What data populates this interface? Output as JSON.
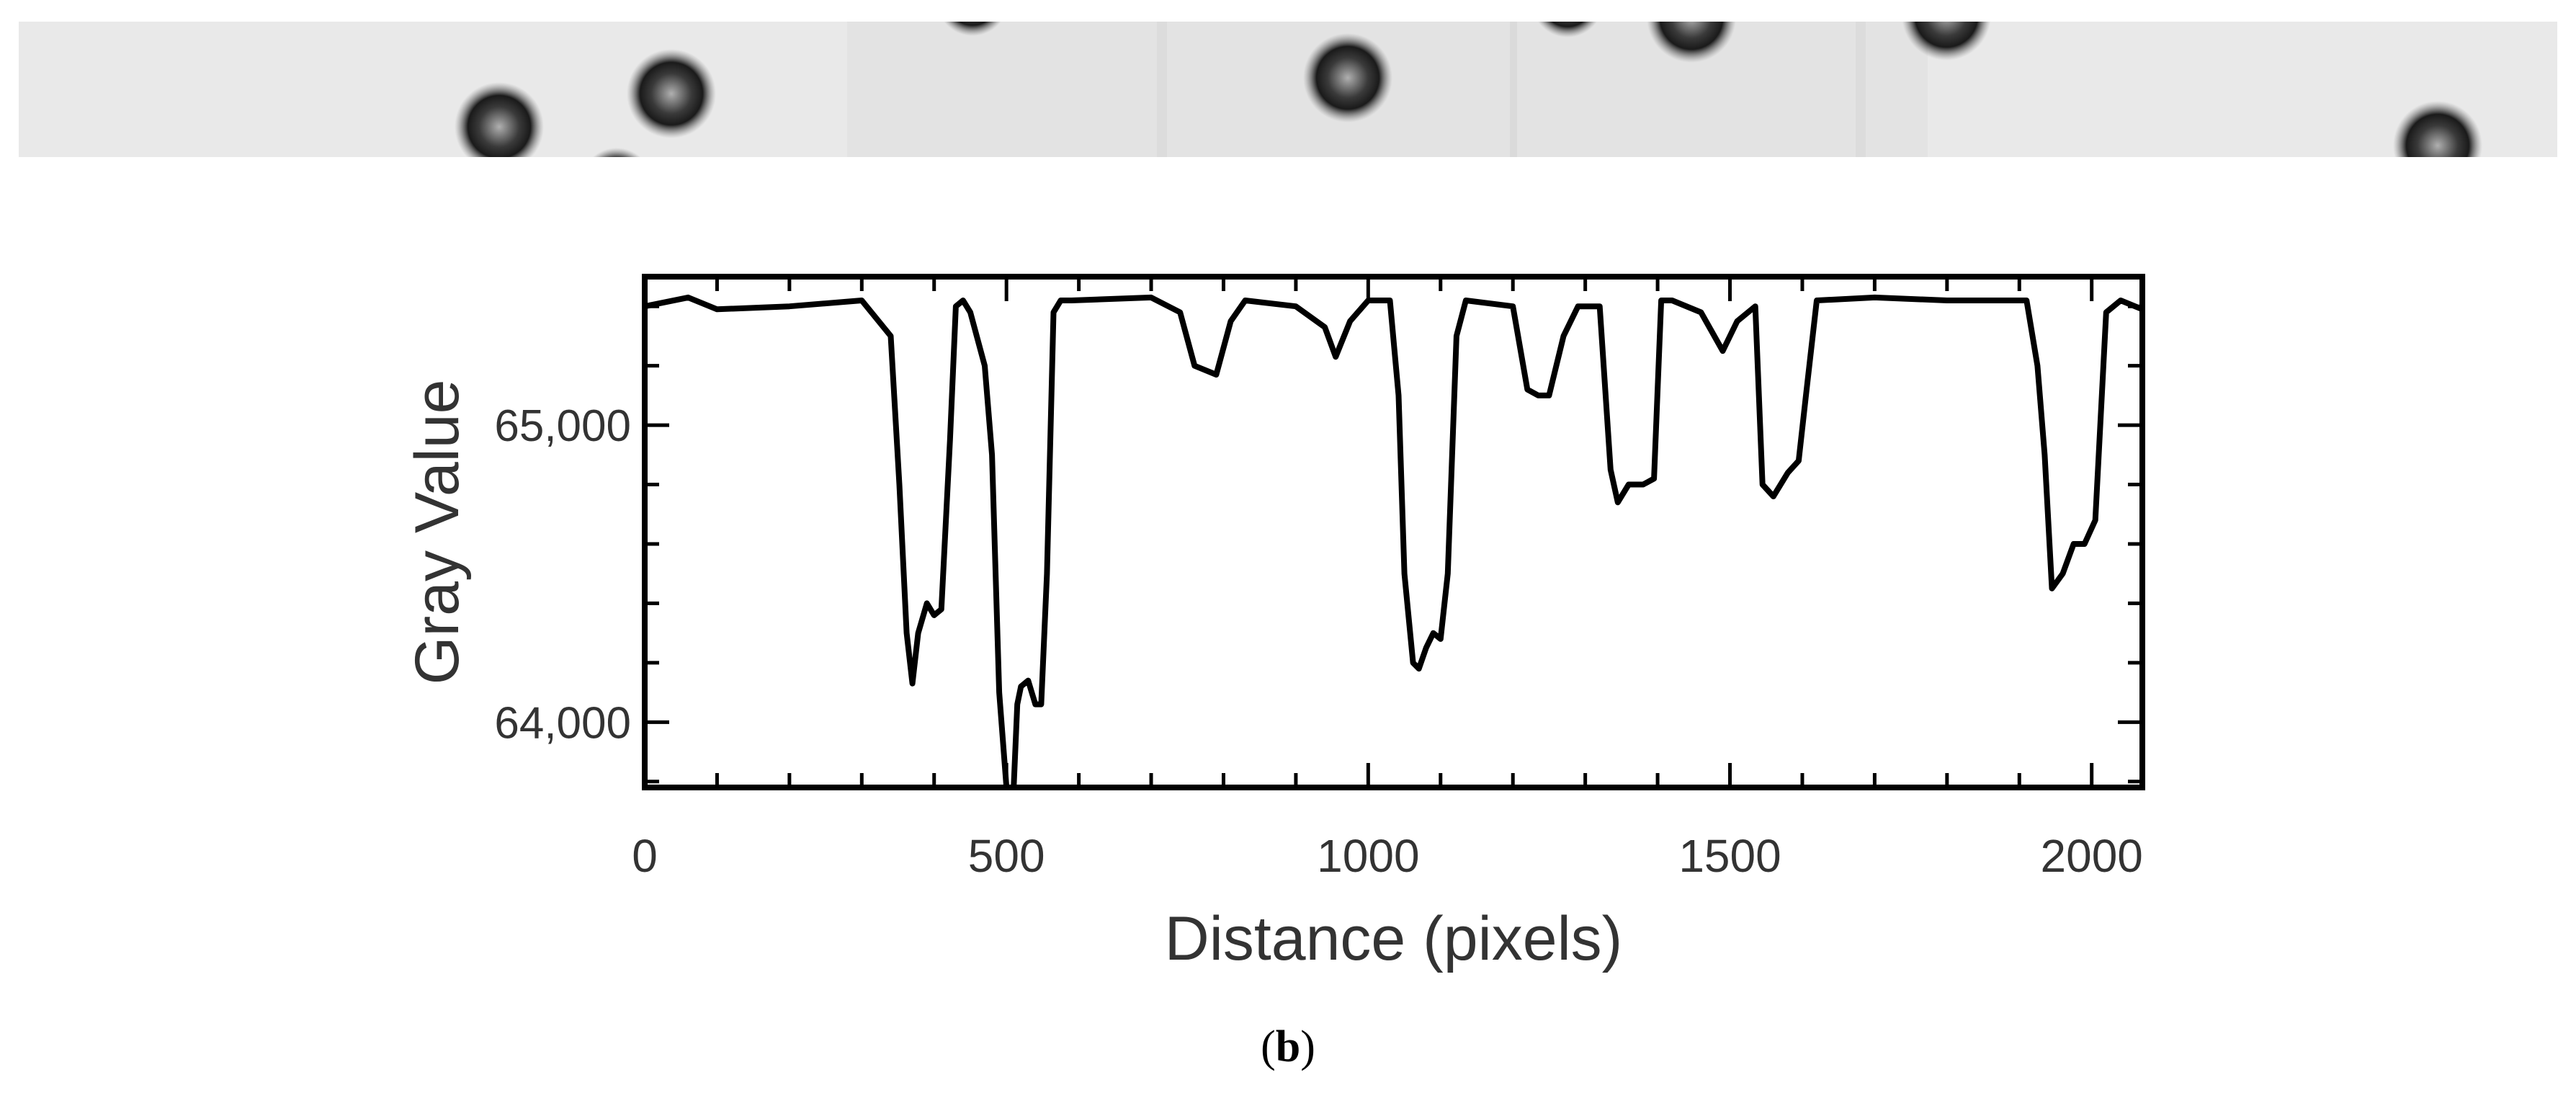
{
  "caption": {
    "open": "(",
    "letter": "b",
    "close": ")"
  },
  "chart_data": {
    "type": "line",
    "title": "",
    "xlabel": "Distance (pixels)",
    "ylabel": "Gray Value",
    "xlim": [
      0,
      2070
    ],
    "ylim": [
      63780,
      65500
    ],
    "xticks": [
      0,
      500,
      1000,
      1500,
      2000
    ],
    "xtick_labels": [
      "0",
      "500",
      "1000",
      "1500",
      "2000"
    ],
    "yticks": [
      64000,
      65000
    ],
    "ytick_labels": [
      "64,000",
      "65,000"
    ],
    "grid": false,
    "legend": false,
    "series": [
      {
        "color": "#000000",
        "x": [
          0,
          60,
          100,
          200,
          300,
          340,
          352,
          362,
          370,
          378,
          390,
          400,
          410,
          422,
          430,
          440,
          450,
          470,
          480,
          490,
          500,
          506,
          510,
          515,
          520,
          530,
          540,
          548,
          556,
          565,
          575,
          590,
          700,
          740,
          760,
          790,
          810,
          830,
          900,
          940,
          955,
          975,
          1000,
          1030,
          1042,
          1050,
          1062,
          1070,
          1080,
          1090,
          1100,
          1110,
          1122,
          1135,
          1200,
          1220,
          1235,
          1250,
          1270,
          1290,
          1320,
          1335,
          1345,
          1360,
          1380,
          1395,
          1405,
          1420,
          1460,
          1490,
          1510,
          1535,
          1545,
          1560,
          1580,
          1595,
          1605,
          1620,
          1700,
          1800,
          1910,
          1925,
          1935,
          1945,
          1960,
          1975,
          1990,
          2005,
          2020,
          2040,
          2070
        ],
        "y": [
          65400,
          65430,
          65390,
          65400,
          65420,
          65300,
          64800,
          64300,
          64130,
          64300,
          64400,
          64360,
          64380,
          64950,
          65400,
          65420,
          65380,
          65200,
          64900,
          64100,
          63780,
          63780,
          63780,
          64060,
          64120,
          64140,
          64060,
          64060,
          64500,
          65380,
          65420,
          65420,
          65430,
          65380,
          65200,
          65170,
          65350,
          65420,
          65400,
          65330,
          65230,
          65350,
          65420,
          65420,
          65100,
          64500,
          64200,
          64180,
          64250,
          64300,
          64280,
          64500,
          65300,
          65420,
          65400,
          65120,
          65100,
          65100,
          65300,
          65400,
          65400,
          64850,
          64740,
          64800,
          64800,
          64820,
          65420,
          65420,
          65380,
          65250,
          65350,
          65400,
          64800,
          64760,
          64840,
          64880,
          65100,
          65420,
          65430,
          65420,
          65420,
          65200,
          64900,
          64450,
          64500,
          64600,
          64600,
          64680,
          65380,
          65420,
          65390
        ]
      }
    ]
  }
}
